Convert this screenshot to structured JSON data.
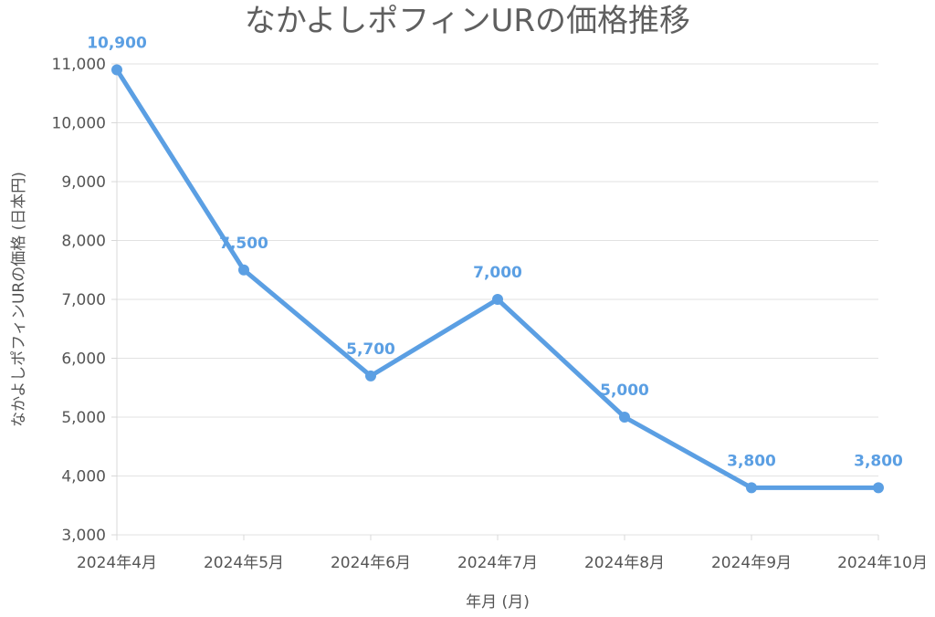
{
  "chart_data": {
    "type": "line",
    "title": "なかよしポフィンURの価格推移",
    "xlabel": "年月 (月)",
    "ylabel": "なかよしポフィンURの価格 (日本円)",
    "categories": [
      "2024年4月",
      "2024年5月",
      "2024年6月",
      "2024年7月",
      "2024年8月",
      "2024年9月",
      "2024年10月"
    ],
    "series": [
      {
        "values": [
          10900,
          7500,
          5700,
          7000,
          5000,
          3800,
          3800
        ],
        "color": "#5b9fe3"
      }
    ],
    "data_labels": [
      "10,900",
      "7,500",
      "5,700",
      "7,000",
      "5,000",
      "3,800",
      "3,800"
    ],
    "ylim": [
      3000,
      11000
    ],
    "y_ticks": [
      3000,
      4000,
      5000,
      6000,
      7000,
      8000,
      9000,
      10000,
      11000
    ],
    "y_tick_labels": [
      "3,000",
      "4,000",
      "5,000",
      "6,000",
      "7,000",
      "8,000",
      "9,000",
      "10,000",
      "11,000"
    ],
    "grid": true,
    "legend": "none"
  }
}
